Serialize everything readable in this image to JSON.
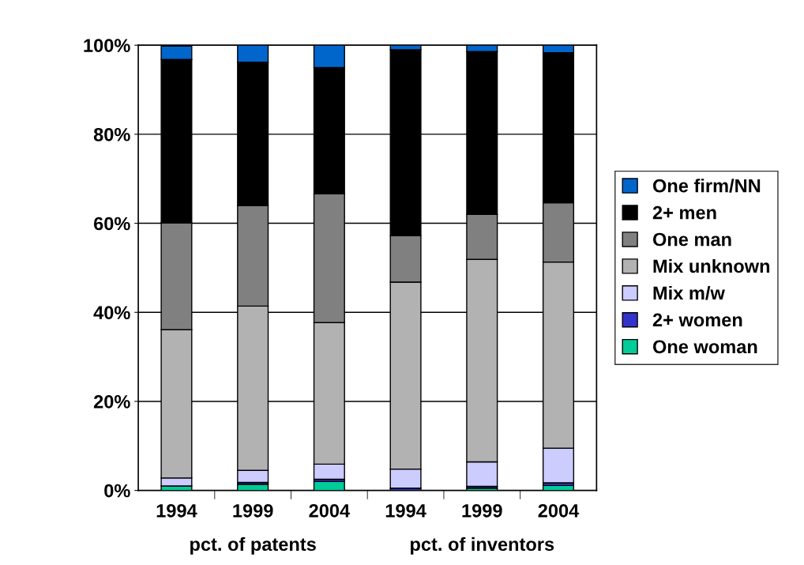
{
  "chart_data": {
    "type": "bar",
    "stacked": true,
    "categories": [
      "1994",
      "1999",
      "2004",
      "1994",
      "1999",
      "2004"
    ],
    "series": [
      {
        "name": "One woman",
        "color": "#00cc99",
        "values": [
          1.0,
          1.4,
          2.0,
          null,
          0.5,
          1.1
        ]
      },
      {
        "name": "2+ women",
        "color": "#3333cc",
        "values": [
          null,
          0.4,
          0.5,
          0.5,
          0.4,
          0.6
        ]
      },
      {
        "name": "Mix m/w",
        "color": "#ccccff",
        "values": [
          1.8,
          2.7,
          3.4,
          4.3,
          5.5,
          7.8
        ]
      },
      {
        "name": "Mix unknown",
        "color": "#b2b2b2",
        "values": [
          33.3,
          36.9,
          31.8,
          42.0,
          45.5,
          41.8
        ]
      },
      {
        "name": "One man",
        "color": "#808080",
        "values": [
          24.0,
          22.6,
          28.9,
          10.4,
          10.1,
          13.3
        ]
      },
      {
        "name": "2+ men",
        "color": "#000000",
        "values": [
          36.7,
          32.2,
          28.4,
          41.8,
          36.6,
          33.7
        ]
      },
      {
        "name": "One firm/NN",
        "color": "#0066cc",
        "values": [
          3.0,
          3.8,
          5.0,
          1.0,
          1.4,
          1.7
        ]
      }
    ],
    "ylim": [
      0,
      100
    ],
    "yticks": [
      {
        "value": 0,
        "label": "0%"
      },
      {
        "value": 20,
        "label": "20%"
      },
      {
        "value": 40,
        "label": "40%"
      },
      {
        "value": 60,
        "label": "60%"
      },
      {
        "value": 80,
        "label": "80%"
      },
      {
        "value": 100,
        "label": "100%"
      }
    ],
    "grid": "y",
    "legend": "right",
    "annotations": [
      "pct. of patents",
      "pct. of inventors"
    ]
  }
}
